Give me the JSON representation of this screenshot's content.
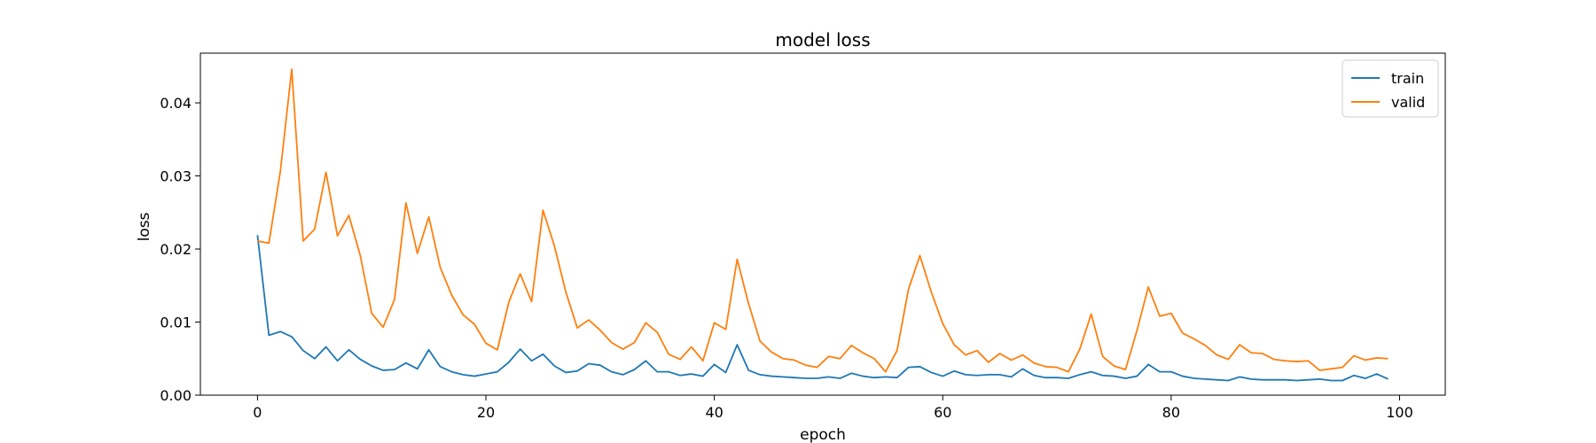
{
  "chart_data": {
    "type": "line",
    "title": "model loss",
    "xlabel": "epoch",
    "ylabel": "loss",
    "xlim": [
      -5,
      104
    ],
    "ylim": [
      0,
      0.0468
    ],
    "xticks": [
      0,
      20,
      40,
      60,
      80,
      100
    ],
    "xtick_labels": [
      "0",
      "20",
      "40",
      "60",
      "80",
      "100"
    ],
    "yticks": [
      0.0,
      0.01,
      0.02,
      0.03,
      0.04
    ],
    "ytick_labels": [
      "0.00",
      "0.01",
      "0.02",
      "0.03",
      "0.04"
    ],
    "grid": false,
    "legend_position": "top-right",
    "x": [
      0,
      1,
      2,
      3,
      4,
      5,
      6,
      7,
      8,
      9,
      10,
      11,
      12,
      13,
      14,
      15,
      16,
      17,
      18,
      19,
      20,
      21,
      22,
      23,
      24,
      25,
      26,
      27,
      28,
      29,
      30,
      31,
      32,
      33,
      34,
      35,
      36,
      37,
      38,
      39,
      40,
      41,
      42,
      43,
      44,
      45,
      46,
      47,
      48,
      49,
      50,
      51,
      52,
      53,
      54,
      55,
      56,
      57,
      58,
      59,
      60,
      61,
      62,
      63,
      64,
      65,
      66,
      67,
      68,
      69,
      70,
      71,
      72,
      73,
      74,
      75,
      76,
      77,
      78,
      79,
      80,
      81,
      82,
      83,
      84,
      85,
      86,
      87,
      88,
      89,
      90,
      91,
      92,
      93,
      94,
      95,
      96,
      97,
      98,
      99
    ],
    "series": [
      {
        "name": "train",
        "color": "#1f77b4",
        "values": [
          0.0219,
          0.0082,
          0.0087,
          0.008,
          0.0061,
          0.005,
          0.0066,
          0.0047,
          0.0062,
          0.0049,
          0.004,
          0.0034,
          0.0035,
          0.0044,
          0.0036,
          0.0062,
          0.0039,
          0.0032,
          0.0028,
          0.0026,
          0.0029,
          0.0032,
          0.0045,
          0.0063,
          0.0047,
          0.0056,
          0.004,
          0.0031,
          0.0033,
          0.0043,
          0.0041,
          0.0032,
          0.0028,
          0.0035,
          0.0047,
          0.0032,
          0.0032,
          0.0027,
          0.0029,
          0.0026,
          0.0042,
          0.0031,
          0.0069,
          0.0034,
          0.0028,
          0.0026,
          0.0025,
          0.0024,
          0.0023,
          0.0023,
          0.0025,
          0.0023,
          0.003,
          0.0026,
          0.0024,
          0.0025,
          0.0024,
          0.0038,
          0.0039,
          0.0031,
          0.0026,
          0.0033,
          0.0028,
          0.0027,
          0.0028,
          0.0028,
          0.0025,
          0.0036,
          0.0027,
          0.0024,
          0.0024,
          0.0023,
          0.0028,
          0.0032,
          0.0027,
          0.0026,
          0.0023,
          0.0026,
          0.0042,
          0.0032,
          0.0032,
          0.0026,
          0.0023,
          0.0022,
          0.0021,
          0.002,
          0.0025,
          0.0022,
          0.0021,
          0.0021,
          0.0021,
          0.002,
          0.0021,
          0.0022,
          0.002,
          0.002,
          0.0027,
          0.0023,
          0.0029,
          0.0022
        ]
      },
      {
        "name": "valid",
        "color": "#ff7f0e",
        "values": [
          0.0211,
          0.0208,
          0.0306,
          0.0446,
          0.0211,
          0.0227,
          0.0305,
          0.0218,
          0.0246,
          0.0191,
          0.0112,
          0.0093,
          0.0131,
          0.0263,
          0.0194,
          0.0244,
          0.0175,
          0.0137,
          0.011,
          0.0097,
          0.0071,
          0.0062,
          0.0127,
          0.0166,
          0.0128,
          0.0253,
          0.0204,
          0.0141,
          0.0092,
          0.0103,
          0.0089,
          0.0072,
          0.0063,
          0.0072,
          0.0099,
          0.0086,
          0.0056,
          0.0049,
          0.0066,
          0.0047,
          0.0099,
          0.009,
          0.0186,
          0.0125,
          0.0074,
          0.0059,
          0.005,
          0.0048,
          0.0041,
          0.0038,
          0.0053,
          0.005,
          0.0068,
          0.0058,
          0.005,
          0.0032,
          0.0061,
          0.0145,
          0.0191,
          0.0141,
          0.0098,
          0.0069,
          0.0055,
          0.0061,
          0.0045,
          0.0057,
          0.0048,
          0.0055,
          0.0044,
          0.0039,
          0.0038,
          0.0032,
          0.0063,
          0.0111,
          0.0053,
          0.004,
          0.0035,
          0.0088,
          0.0148,
          0.0108,
          0.0112,
          0.0085,
          0.0077,
          0.0068,
          0.0055,
          0.0049,
          0.0069,
          0.0058,
          0.0057,
          0.0049,
          0.0047,
          0.0046,
          0.0047,
          0.0034,
          0.0036,
          0.0038,
          0.0054,
          0.0048,
          0.0051,
          0.005
        ]
      }
    ]
  }
}
